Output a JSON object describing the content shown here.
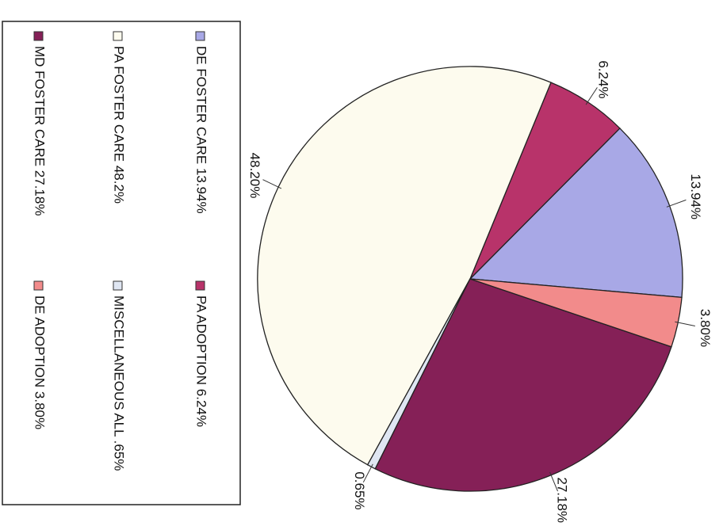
{
  "chart_data": {
    "type": "pie",
    "slices": [
      {
        "name": "DE FOSTER CARE",
        "value": 13.94,
        "slice_label": "13.94%",
        "legend_label": "DE FOSTER CARE 13.94%",
        "color": "#a8a8e6"
      },
      {
        "name": "PA ADOPTION",
        "value": 6.24,
        "slice_label": "6.24%",
        "legend_label": "PA ADOPTION 6.24%",
        "color": "#b8336a"
      },
      {
        "name": "PA FOSTER CARE",
        "value": 48.2,
        "slice_label": "48.20%",
        "legend_label": "PA FOSTER CARE 48.2%",
        "color": "#fdfbee"
      },
      {
        "name": "MISCELLANEOUS ALL",
        "value": 0.65,
        "slice_label": "0.65%",
        "legend_label": "MISCELLANEOUS ALL .65%",
        "color": "#dfe6f2"
      },
      {
        "name": "MD FOSTER CARE",
        "value": 27.18,
        "slice_label": "27.18%",
        "legend_label": "MD FOSTER CARE 27.18%",
        "color": "#852057"
      },
      {
        "name": "DE ADOPTION",
        "value": 3.8,
        "slice_label": "3.80%",
        "legend_label": "DE ADOPTION  3.80%",
        "color": "#f28b8b"
      }
    ],
    "legend_position": "left"
  }
}
